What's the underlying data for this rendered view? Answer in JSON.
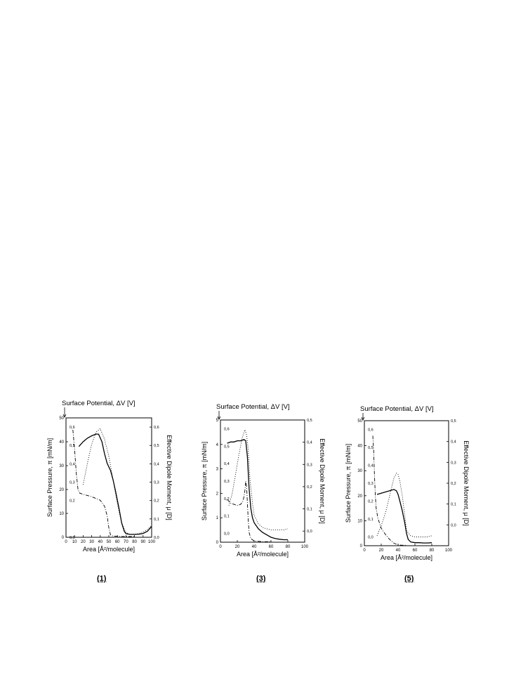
{
  "chart_data": [
    {
      "type": "line",
      "panel_label": "(1)",
      "top_label": "Surface Potential, ΔV [V]",
      "xlabel": "Area [Å²/molecule]",
      "ylabel": "Surface Pressure,  π [mN/m]",
      "y2label": "Effective Dipole Moment,  μ [D]",
      "xlim": [
        0,
        100
      ],
      "ylim": [
        0,
        50
      ],
      "y2lim": [
        0,
        0.65
      ],
      "potlim": [
        0,
        0.65
      ],
      "xticks": [
        0,
        10,
        20,
        30,
        40,
        50,
        60,
        70,
        80,
        90,
        100
      ],
      "yticks": [
        0,
        10,
        20,
        30,
        40,
        50
      ],
      "y2ticks": [
        "0,0",
        "0,1",
        "0,2",
        "0,3",
        "0,4",
        "0,5",
        "0,6"
      ],
      "potticks": [
        "0,0",
        "0,2",
        "0,3",
        "0,4",
        "0,5",
        "0,6"
      ],
      "potvals": [
        0,
        0.2,
        0.3,
        0.4,
        0.5,
        0.6
      ],
      "series": [
        {
          "style": "solid",
          "x": [
            15,
            20,
            25,
            30,
            35,
            38,
            42,
            45,
            48,
            52,
            55,
            58,
            62,
            65,
            68,
            70,
            75,
            80,
            85,
            90,
            95,
            100
          ],
          "y": [
            38,
            40,
            41.5,
            42.5,
            43.2,
            43.2,
            40,
            35,
            31,
            28,
            24,
            19,
            12,
            6,
            2.5,
            1.5,
            1.2,
            1.2,
            1.3,
            1.6,
            2.5,
            4.5
          ]
        },
        {
          "style": "dotted",
          "x": [
            20,
            25,
            30,
            35,
            40,
            45,
            50,
            55,
            60,
            65,
            70,
            75,
            80,
            85,
            90,
            95,
            100
          ],
          "y": [
            22,
            31,
            39,
            44,
            45.5,
            41,
            34,
            24,
            14,
            6,
            2,
            1.2,
            1.3,
            1.6,
            2.2,
            3.2,
            5
          ]
        },
        {
          "style": "dashdot",
          "x": [
            8,
            10,
            12,
            14,
            16,
            20,
            30,
            40,
            45,
            48,
            50,
            52,
            55,
            60,
            70,
            80
          ],
          "y": [
            45,
            37,
            27,
            20,
            18.5,
            18,
            17,
            15.5,
            13,
            9,
            4,
            1,
            0.5,
            0.4,
            0.3,
            0.3
          ]
        }
      ]
    },
    {
      "type": "line",
      "panel_label": "(3)",
      "top_label": "Surface Potential, ΔV [V]",
      "xlabel": "Area [Å²/molecule]",
      "ylabel": "Surface Pressure,  π [mN/m]",
      "y2label": "Effective Dipole Moment,  μ [D]",
      "xlim": [
        0,
        100
      ],
      "ylim": [
        0,
        5
      ],
      "y2lim": [
        -0.05,
        0.5
      ],
      "potlim": [
        -0.05,
        0.65
      ],
      "xticks": [
        0,
        20,
        40,
        60,
        80,
        100
      ],
      "yticks": [
        0,
        1,
        2,
        3,
        4,
        5
      ],
      "y2ticks": [
        "0,0",
        "0,1",
        "0,2",
        "0,3",
        "0,4",
        "0,5"
      ],
      "potticks": [
        "0,0",
        "0,1",
        "0,2",
        "0,3",
        "0,4",
        "0,5",
        "0,6"
      ],
      "potvals": [
        0,
        0.1,
        0.2,
        0.3,
        0.4,
        0.5,
        0.6
      ],
      "series": [
        {
          "style": "solid",
          "x": [
            8,
            12,
            16,
            20,
            24,
            28,
            30,
            32,
            34,
            36,
            38,
            40,
            45,
            50,
            55,
            60,
            65,
            70,
            75,
            80
          ],
          "y": [
            4.05,
            4.1,
            4.1,
            4.15,
            4.15,
            4.2,
            4.15,
            3.5,
            2.2,
            1.4,
            1.0,
            0.8,
            0.55,
            0.4,
            0.3,
            0.2,
            0.15,
            0.12,
            0.1,
            0.1
          ]
        },
        {
          "style": "dotted",
          "x": [
            10,
            14,
            18,
            22,
            26,
            29,
            31,
            33,
            35,
            38,
            40,
            45,
            50,
            55,
            60,
            65,
            70,
            75,
            80
          ],
          "y": [
            1.5,
            2.0,
            2.8,
            3.6,
            4.3,
            4.6,
            4.4,
            3.8,
            2.6,
            1.6,
            1.1,
            0.75,
            0.6,
            0.55,
            0.5,
            0.5,
            0.5,
            0.5,
            0.55
          ]
        },
        {
          "style": "dashdot",
          "x": [
            8,
            12,
            16,
            20,
            24,
            27,
            29,
            30,
            31,
            32,
            33,
            34,
            36,
            40,
            50,
            60
          ],
          "y": [
            1.75,
            1.6,
            1.55,
            1.5,
            1.55,
            1.7,
            2.1,
            2.5,
            2.3,
            1.6,
            0.9,
            0.4,
            0.15,
            0.05,
            0.02,
            0.02
          ]
        }
      ]
    },
    {
      "type": "line",
      "panel_label": "(5)",
      "top_label": "Surface Potential, ΔV [V]",
      "xlabel": "Area [Å²/molecule]",
      "ylabel": "Surface Pressure,  π [mN/m]",
      "y2label": "Effective Dipole Moment,  μ [D]",
      "xlim": [
        0,
        100
      ],
      "ylim": [
        0,
        50
      ],
      "y2lim": [
        -0.1,
        0.5
      ],
      "potlim": [
        -0.05,
        0.65
      ],
      "xticks": [
        0,
        20,
        40,
        60,
        80,
        100
      ],
      "yticks": [
        0,
        10,
        20,
        30,
        40,
        50
      ],
      "y2ticks": [
        "0,0",
        "0,1",
        "0,2",
        "0,3",
        "0,4",
        "0,5"
      ],
      "potticks": [
        "0,0",
        "0,1",
        "0,2",
        "0,3",
        "0,4",
        "0,5",
        "0,6"
      ],
      "potvals": [
        0,
        0.1,
        0.2,
        0.3,
        0.4,
        0.5,
        0.6
      ],
      "series": [
        {
          "style": "solid",
          "x": [
            15,
            20,
            25,
            30,
            35,
            38,
            40,
            42,
            45,
            48,
            50,
            52,
            55,
            60,
            65,
            70,
            75,
            80
          ],
          "y": [
            20.5,
            21,
            21.5,
            22,
            22.5,
            22,
            20.5,
            18,
            14,
            9,
            5,
            2.5,
            1.5,
            1.2,
            1.2,
            1.1,
            1.1,
            1.2
          ]
        },
        {
          "style": "dotted",
          "x": [
            15,
            20,
            25,
            30,
            35,
            38,
            40,
            42,
            45,
            48,
            50,
            55,
            60,
            65,
            70,
            75,
            80
          ],
          "y": [
            4,
            8,
            13,
            20,
            27,
            29,
            28.5,
            26,
            20,
            12,
            6,
            4,
            3.5,
            3.5,
            3.5,
            3.5,
            4
          ]
        },
        {
          "style": "dashdot",
          "x": [
            10,
            11,
            12,
            13,
            14,
            16,
            20,
            25,
            30,
            35,
            40,
            45,
            50
          ],
          "y": [
            44,
            38,
            28,
            20,
            15,
            11,
            7,
            4.5,
            2.5,
            1,
            0.3,
            0.2,
            0.2
          ]
        }
      ]
    }
  ]
}
